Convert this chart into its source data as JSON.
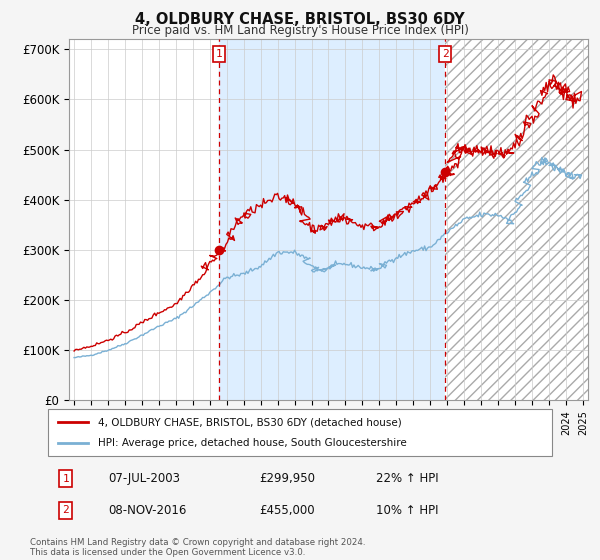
{
  "title": "4, OLDBURY CHASE, BRISTOL, BS30 6DY",
  "subtitle": "Price paid vs. HM Land Registry's House Price Index (HPI)",
  "background_color": "#f5f5f5",
  "plot_bg_color": "#ffffff",
  "red_color": "#cc0000",
  "blue_color": "#7ab0d4",
  "shade_color": "#ddeeff",
  "hatch_color": "#cccccc",
  "ylim": [
    0,
    720000
  ],
  "yticks": [
    0,
    100000,
    200000,
    300000,
    400000,
    500000,
    600000,
    700000
  ],
  "ytick_labels": [
    "£0",
    "£100K",
    "£200K",
    "£300K",
    "£400K",
    "£500K",
    "£600K",
    "£700K"
  ],
  "sale1_date_x": 2003.54,
  "sale1_price": 299950,
  "sale1_label": "1",
  "sale1_date_str": "07-JUL-2003",
  "sale1_price_str": "£299,950",
  "sale1_hpi_str": "22% ↑ HPI",
  "sale2_date_x": 2016.87,
  "sale2_price": 455000,
  "sale2_label": "2",
  "sale2_date_str": "08-NOV-2016",
  "sale2_price_str": "£455,000",
  "sale2_hpi_str": "10% ↑ HPI",
  "legend_line1": "4, OLDBURY CHASE, BRISTOL, BS30 6DY (detached house)",
  "legend_line2": "HPI: Average price, detached house, South Gloucestershire",
  "footnote": "Contains HM Land Registry data © Crown copyright and database right 2024.\nThis data is licensed under the Open Government Licence v3.0.",
  "xlim_start": 1994.7,
  "xlim_end": 2025.3
}
